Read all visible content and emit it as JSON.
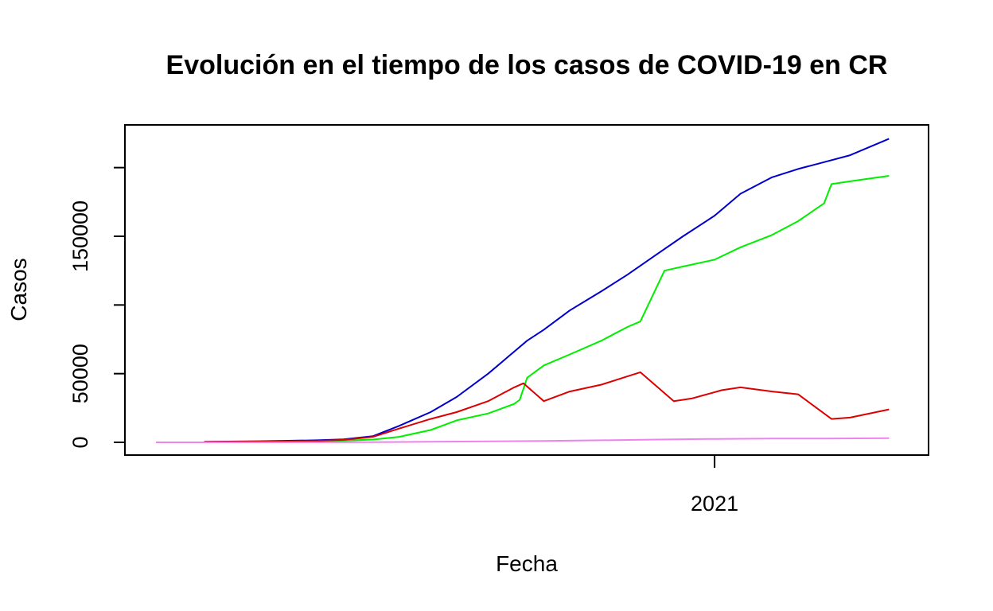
{
  "chart_data": {
    "type": "line",
    "title": "Evolución en el tiempo de los casos de COVID-19 en CR",
    "xlabel": "Fecha",
    "ylabel": "Casos",
    "x_tick_labels": [
      "2021"
    ],
    "x_tick_values": [
      "2021-01-01"
    ],
    "y_ticks": [
      0,
      50000,
      100000,
      150000,
      200000
    ],
    "y_tick_labels": [
      "0",
      "50000",
      "",
      "150000",
      ""
    ],
    "ylim": [
      0,
      215000
    ],
    "xlim": [
      "2020-03-06",
      "2021-04-10"
    ],
    "grid": false,
    "legend": "none",
    "series": [
      {
        "color": "#0000CD",
        "points": [
          [
            "2020-04-01",
            400
          ],
          [
            "2020-05-01",
            800
          ],
          [
            "2020-06-01",
            1500
          ],
          [
            "2020-06-15",
            2200
          ],
          [
            "2020-07-01",
            4500
          ],
          [
            "2020-07-15",
            12000
          ],
          [
            "2020-08-01",
            22000
          ],
          [
            "2020-08-15",
            33000
          ],
          [
            "2020-09-01",
            50000
          ],
          [
            "2020-09-15",
            66000
          ],
          [
            "2020-09-22",
            74000
          ],
          [
            "2020-10-01",
            82000
          ],
          [
            "2020-10-15",
            96000
          ],
          [
            "2020-11-01",
            110000
          ],
          [
            "2020-11-15",
            122000
          ],
          [
            "2020-12-01",
            137000
          ],
          [
            "2020-12-15",
            150000
          ],
          [
            "2021-01-01",
            165000
          ],
          [
            "2021-01-15",
            181000
          ],
          [
            "2021-02-01",
            193000
          ],
          [
            "2021-02-15",
            199000
          ],
          [
            "2021-03-01",
            204000
          ],
          [
            "2021-03-15",
            209000
          ],
          [
            "2021-04-05",
            221000
          ]
        ]
      },
      {
        "color": "#00EE00",
        "points": [
          [
            "2020-04-01",
            0
          ],
          [
            "2020-06-01",
            500
          ],
          [
            "2020-07-01",
            2000
          ],
          [
            "2020-07-15",
            4000
          ],
          [
            "2020-08-01",
            9000
          ],
          [
            "2020-08-15",
            16000
          ],
          [
            "2020-09-01",
            21000
          ],
          [
            "2020-09-15",
            28000
          ],
          [
            "2020-09-18",
            31000
          ],
          [
            "2020-09-22",
            47000
          ],
          [
            "2020-10-01",
            56000
          ],
          [
            "2020-10-15",
            64000
          ],
          [
            "2020-11-01",
            74000
          ],
          [
            "2020-11-15",
            84000
          ],
          [
            "2020-11-22",
            88000
          ],
          [
            "2020-12-05",
            125000
          ],
          [
            "2020-12-15",
            128000
          ],
          [
            "2021-01-01",
            133000
          ],
          [
            "2021-01-15",
            142000
          ],
          [
            "2021-02-01",
            151000
          ],
          [
            "2021-02-15",
            161000
          ],
          [
            "2021-03-01",
            174000
          ],
          [
            "2021-03-05",
            188000
          ],
          [
            "2021-03-15",
            190000
          ],
          [
            "2021-04-05",
            194000
          ]
        ]
      },
      {
        "color": "#DD0000",
        "points": [
          [
            "2020-04-01",
            300
          ],
          [
            "2020-05-01",
            600
          ],
          [
            "2020-06-01",
            1000
          ],
          [
            "2020-06-15",
            1800
          ],
          [
            "2020-07-01",
            4000
          ],
          [
            "2020-07-15",
            10000
          ],
          [
            "2020-08-01",
            17000
          ],
          [
            "2020-08-15",
            22000
          ],
          [
            "2020-09-01",
            30000
          ],
          [
            "2020-09-15",
            40000
          ],
          [
            "2020-09-20",
            43000
          ],
          [
            "2020-10-01",
            30000
          ],
          [
            "2020-10-15",
            37000
          ],
          [
            "2020-11-01",
            42000
          ],
          [
            "2020-11-15",
            48000
          ],
          [
            "2020-11-22",
            51000
          ],
          [
            "2020-12-10",
            30000
          ],
          [
            "2020-12-20",
            32000
          ],
          [
            "2021-01-05",
            38000
          ],
          [
            "2021-01-15",
            40000
          ],
          [
            "2021-02-01",
            37000
          ],
          [
            "2021-02-15",
            35000
          ],
          [
            "2021-03-01",
            21000
          ],
          [
            "2021-03-05",
            17000
          ],
          [
            "2021-03-15",
            18000
          ],
          [
            "2021-04-05",
            24000
          ]
        ]
      },
      {
        "color": "#EE82EE",
        "points": [
          [
            "2020-03-06",
            0
          ],
          [
            "2020-06-01",
            50
          ],
          [
            "2020-07-01",
            200
          ],
          [
            "2020-08-01",
            400
          ],
          [
            "2020-09-01",
            700
          ],
          [
            "2020-10-01",
            1000
          ],
          [
            "2020-11-01",
            1500
          ],
          [
            "2020-12-01",
            2000
          ],
          [
            "2021-01-01",
            2500
          ],
          [
            "2021-02-01",
            2700
          ],
          [
            "2021-03-01",
            2800
          ],
          [
            "2021-04-05",
            3000
          ]
        ]
      }
    ]
  }
}
